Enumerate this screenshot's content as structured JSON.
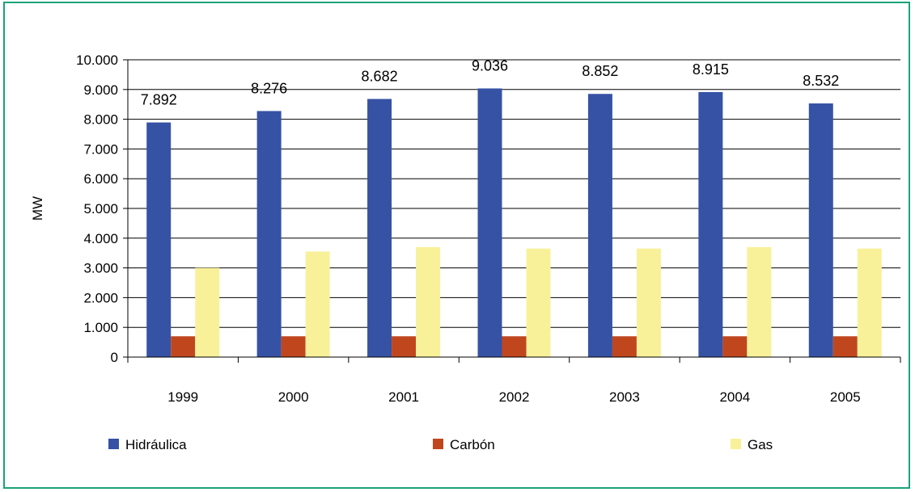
{
  "chart_data": {
    "type": "bar",
    "title": "",
    "xlabel": "",
    "ylabel": "MW",
    "ylim": [
      0,
      10000
    ],
    "yticks": [
      0,
      1000,
      2000,
      3000,
      4000,
      5000,
      6000,
      7000,
      8000,
      9000,
      10000
    ],
    "ytick_labels": [
      "0",
      "1.000",
      "2.000",
      "3.000",
      "4.000",
      "5.000",
      "6.000",
      "7.000",
      "8.000",
      "9.000",
      "10.000"
    ],
    "categories": [
      "1999",
      "2000",
      "2001",
      "2002",
      "2003",
      "2004",
      "2005"
    ],
    "series": [
      {
        "name": "Hidráulica",
        "color": "#3652a5",
        "values": [
          7892,
          8276,
          8682,
          9036,
          8852,
          8915,
          8532
        ],
        "data_labels": [
          "7.892",
          "8.276",
          "8.682",
          "9.036",
          "8.852",
          "8.915",
          "8.532"
        ]
      },
      {
        "name": "Carbón",
        "color": "#c0461e",
        "values": [
          700,
          700,
          700,
          700,
          700,
          700,
          700
        ]
      },
      {
        "name": "Gas",
        "color": "#f8f19a",
        "values": [
          3000,
          3550,
          3700,
          3650,
          3650,
          3700,
          3650
        ]
      }
    ],
    "grid": true,
    "legend_position": "bottom"
  }
}
